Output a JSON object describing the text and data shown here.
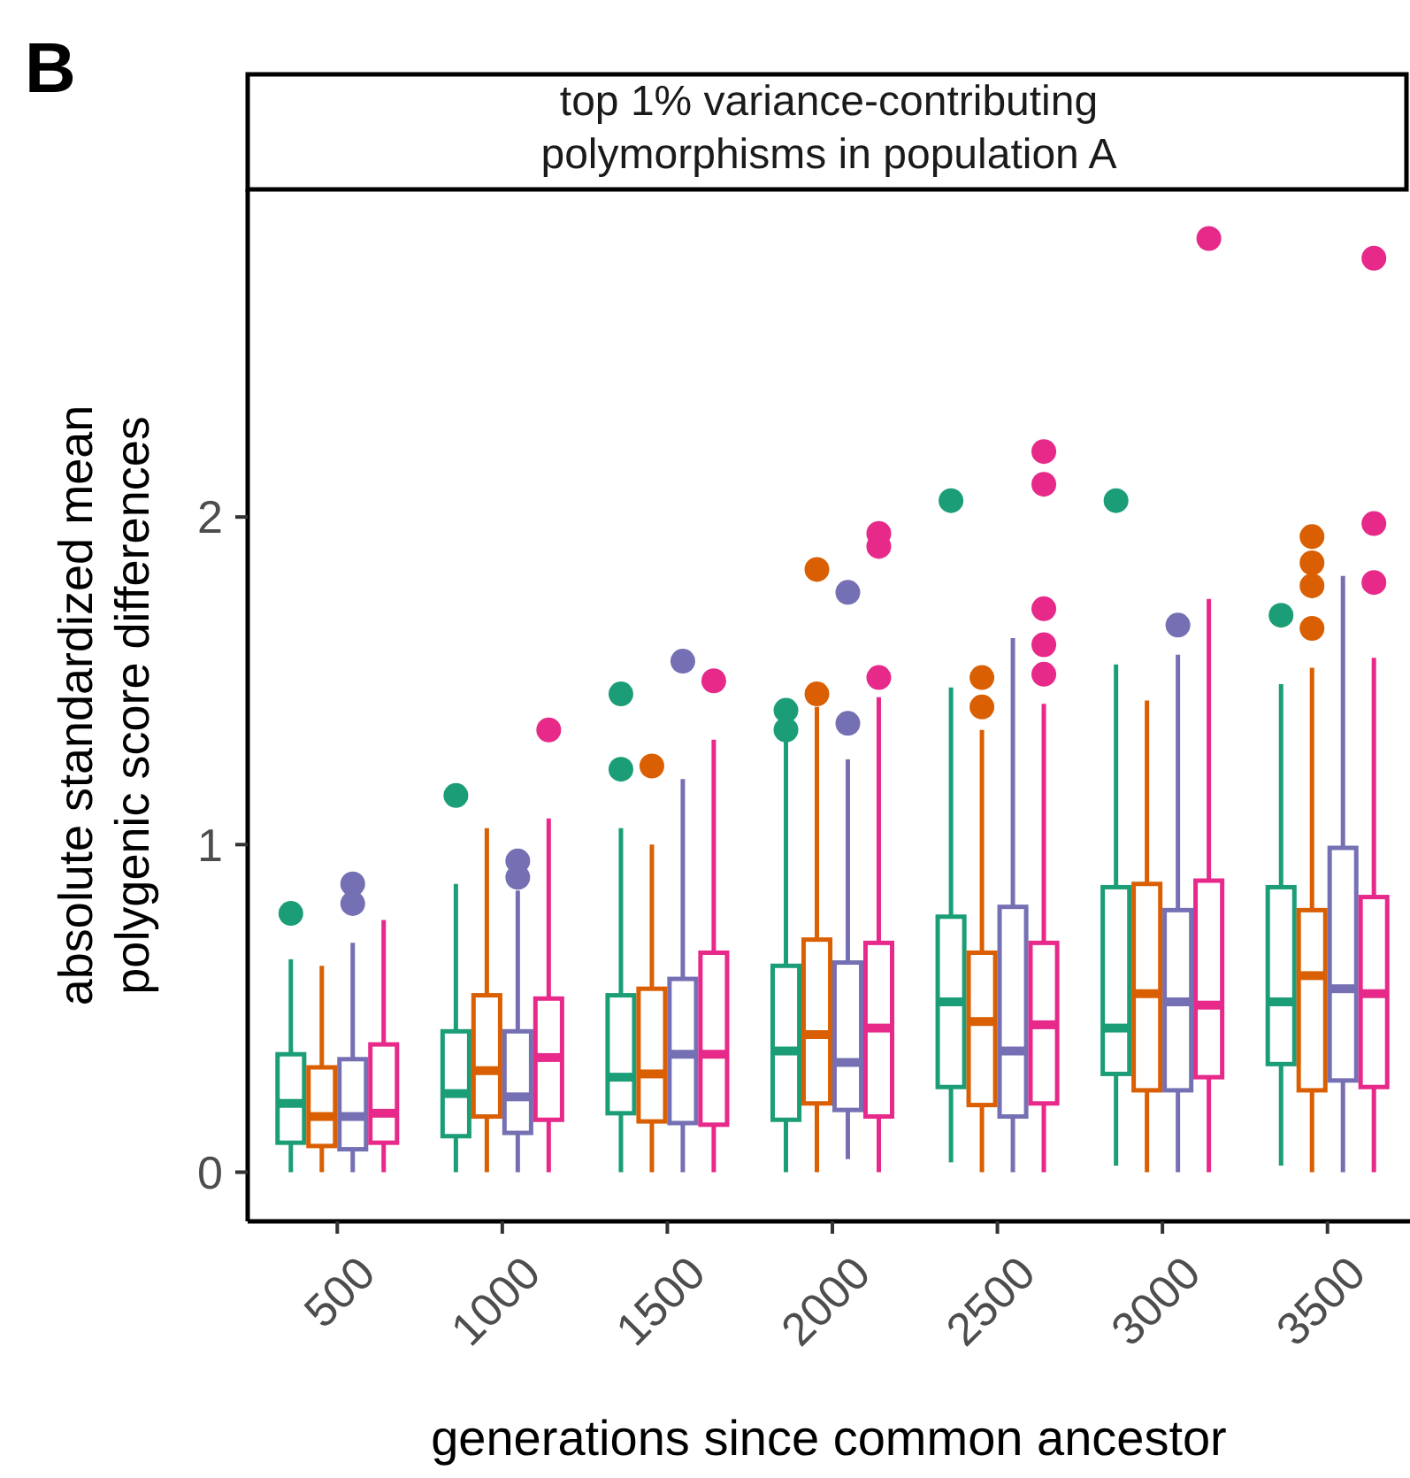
{
  "chart_data": {
    "type": "box",
    "title": "top 1% variance-contributing\npolymorphisms in population A",
    "xlabel": "generations since common ancestor",
    "ylabel": "absolute standardized mean\npolygenic score differences",
    "annotations": [
      "B"
    ],
    "categories": [
      "500",
      "1000",
      "1500",
      "2000",
      "2500",
      "3000",
      "3500"
    ],
    "ylim": [
      -0.15,
      3.0
    ],
    "yticks": [
      0,
      1,
      2
    ],
    "grid": false,
    "series": [
      {
        "color": "#1b9e77",
        "boxes": [
          {
            "low": 0,
            "q1": 0.09,
            "median": 0.21,
            "q3": 0.36,
            "high": 0.65,
            "outliers": [
              0.79
            ]
          },
          {
            "low": 0,
            "q1": 0.11,
            "median": 0.24,
            "q3": 0.43,
            "high": 0.88,
            "outliers": [
              1.15
            ]
          },
          {
            "low": 0,
            "q1": 0.18,
            "median": 0.29,
            "q3": 0.54,
            "high": 1.05,
            "outliers": [
              1.23,
              1.46
            ]
          },
          {
            "low": 0,
            "q1": 0.16,
            "median": 0.37,
            "q3": 0.63,
            "high": 1.32,
            "outliers": [
              1.35,
              1.41
            ]
          },
          {
            "low": 0.03,
            "q1": 0.26,
            "median": 0.52,
            "q3": 0.78,
            "high": 1.48,
            "outliers": [
              2.05
            ]
          },
          {
            "low": 0.02,
            "q1": 0.3,
            "median": 0.44,
            "q3": 0.87,
            "high": 1.55,
            "outliers": [
              2.05
            ]
          },
          {
            "low": 0.02,
            "q1": 0.33,
            "median": 0.52,
            "q3": 0.87,
            "high": 1.49,
            "outliers": [
              1.7
            ]
          }
        ]
      },
      {
        "color": "#d95f02",
        "boxes": [
          {
            "low": 0,
            "q1": 0.08,
            "median": 0.17,
            "q3": 0.32,
            "high": 0.63
          },
          {
            "low": 0,
            "q1": 0.17,
            "median": 0.31,
            "q3": 0.54,
            "high": 1.05
          },
          {
            "low": 0,
            "q1": 0.155,
            "median": 0.3,
            "q3": 0.56,
            "high": 1.0,
            "outliers": [
              1.24
            ]
          },
          {
            "low": 0,
            "q1": 0.21,
            "median": 0.42,
            "q3": 0.71,
            "high": 1.42,
            "outliers": [
              1.46,
              1.84
            ]
          },
          {
            "low": 0,
            "q1": 0.205,
            "median": 0.46,
            "q3": 0.67,
            "high": 1.35,
            "outliers": [
              1.42,
              1.51
            ]
          },
          {
            "low": 0,
            "q1": 0.25,
            "median": 0.545,
            "q3": 0.88,
            "high": 1.44
          },
          {
            "low": 0,
            "q1": 0.25,
            "median": 0.6,
            "q3": 0.8,
            "high": 1.54,
            "outliers": [
              1.66,
              1.79,
              1.86,
              1.94
            ]
          }
        ]
      },
      {
        "color": "#7570b3",
        "boxes": [
          {
            "low": 0,
            "q1": 0.07,
            "median": 0.17,
            "q3": 0.345,
            "high": 0.7,
            "outliers": [
              0.82,
              0.88
            ]
          },
          {
            "low": 0,
            "q1": 0.12,
            "median": 0.23,
            "q3": 0.43,
            "high": 0.86,
            "outliers": [
              0.9,
              0.95
            ]
          },
          {
            "low": 0,
            "q1": 0.15,
            "median": 0.36,
            "q3": 0.59,
            "high": 1.2,
            "outliers": [
              1.56
            ]
          },
          {
            "low": 0.04,
            "q1": 0.19,
            "median": 0.335,
            "q3": 0.64,
            "high": 1.26,
            "outliers": [
              1.37,
              1.77
            ]
          },
          {
            "low": 0,
            "q1": 0.17,
            "median": 0.37,
            "q3": 0.81,
            "high": 1.63
          },
          {
            "low": 0,
            "q1": 0.25,
            "median": 0.52,
            "q3": 0.8,
            "high": 1.58,
            "outliers": [
              1.67
            ]
          },
          {
            "low": 0,
            "q1": 0.28,
            "median": 0.56,
            "q3": 0.99,
            "high": 1.82
          }
        ]
      },
      {
        "color": "#e7298a",
        "boxes": [
          {
            "low": 0,
            "q1": 0.09,
            "median": 0.18,
            "q3": 0.39,
            "high": 0.77
          },
          {
            "low": 0,
            "q1": 0.16,
            "median": 0.35,
            "q3": 0.53,
            "high": 1.08,
            "outliers": [
              1.35
            ]
          },
          {
            "low": 0,
            "q1": 0.145,
            "median": 0.36,
            "q3": 0.67,
            "high": 1.32,
            "outliers": [
              1.5
            ]
          },
          {
            "low": 0,
            "q1": 0.17,
            "median": 0.44,
            "q3": 0.7,
            "high": 1.45,
            "outliers": [
              1.51,
              1.91,
              1.95
            ]
          },
          {
            "low": 0,
            "q1": 0.21,
            "median": 0.45,
            "q3": 0.7,
            "high": 1.43,
            "outliers": [
              1.52,
              1.61,
              1.72,
              2.1,
              2.2
            ]
          },
          {
            "low": 0,
            "q1": 0.29,
            "median": 0.51,
            "q3": 0.89,
            "high": 1.75,
            "outliers": [
              2.85
            ]
          },
          {
            "low": 0,
            "q1": 0.26,
            "median": 0.545,
            "q3": 0.84,
            "high": 1.57,
            "outliers": [
              1.8,
              1.98,
              2.79
            ]
          }
        ]
      }
    ]
  }
}
